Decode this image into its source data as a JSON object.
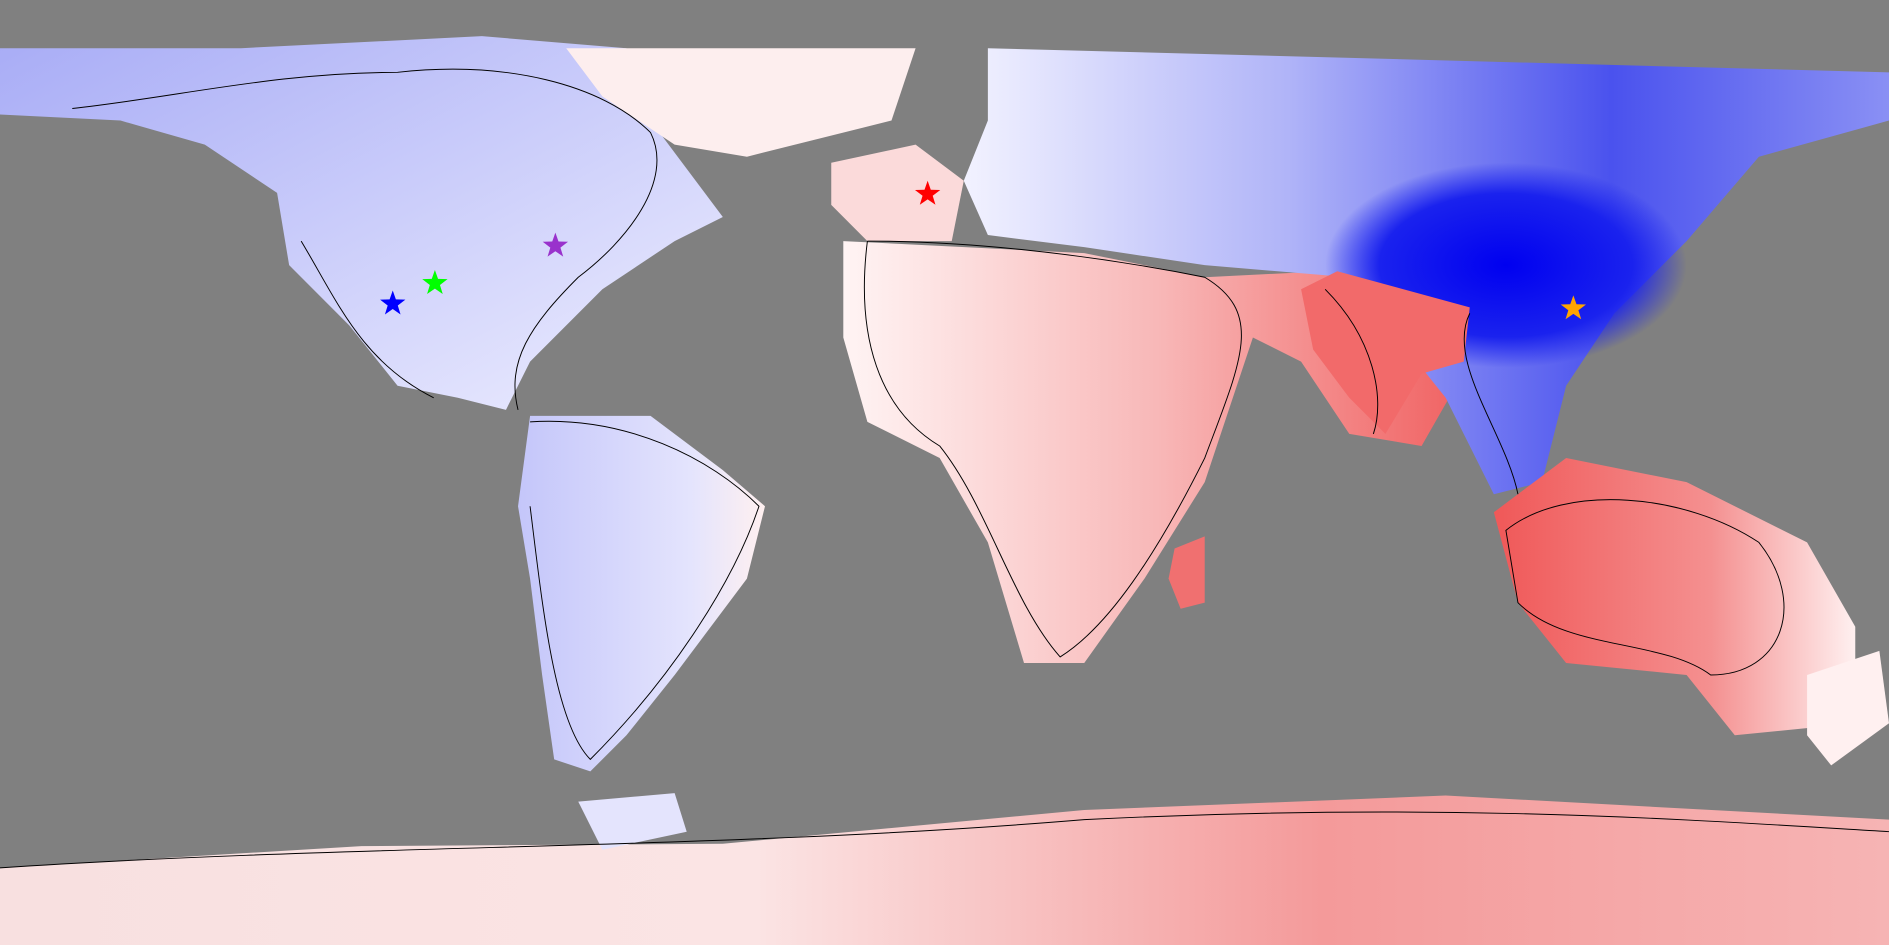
{
  "markers": [
    {
      "color": "#0000ff"
    },
    {
      "color": "#00ff00"
    },
    {
      "color": "#9932cc"
    },
    {
      "color": "#ff0000"
    },
    {
      "color": "#ffa500"
    }
  ]
}
